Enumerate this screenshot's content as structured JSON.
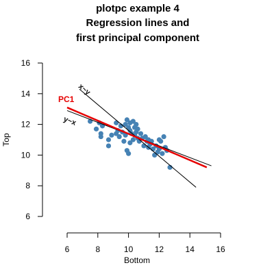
{
  "chart_data": {
    "type": "scatter",
    "title_lines": [
      "plotpc example 4",
      "Regression lines and",
      "first principal component"
    ],
    "xlabel": "Bottom",
    "ylabel": "Top",
    "xlim": [
      6,
      16
    ],
    "ylim": [
      6,
      16
    ],
    "x_ticks": [
      "6",
      "8",
      "10",
      "12",
      "14",
      "16"
    ],
    "y_ticks": [
      "6",
      "8",
      "10",
      "12",
      "14",
      "16"
    ],
    "grid": false,
    "point_color": "#4682b4",
    "pc_color": "#e60000",
    "points": [
      {
        "x": 7.5,
        "y": 12.2
      },
      {
        "x": 7.9,
        "y": 11.7
      },
      {
        "x": 8.1,
        "y": 12.1
      },
      {
        "x": 8.2,
        "y": 11.4
      },
      {
        "x": 8.2,
        "y": 11.2
      },
      {
        "x": 8.3,
        "y": 11.9
      },
      {
        "x": 8.7,
        "y": 11.0
      },
      {
        "x": 8.7,
        "y": 10.6
      },
      {
        "x": 8.9,
        "y": 11.3
      },
      {
        "x": 9.2,
        "y": 12.1
      },
      {
        "x": 9.2,
        "y": 11.4
      },
      {
        "x": 9.3,
        "y": 11.6
      },
      {
        "x": 9.4,
        "y": 11.2
      },
      {
        "x": 9.5,
        "y": 11.9
      },
      {
        "x": 9.6,
        "y": 11.5
      },
      {
        "x": 9.7,
        "y": 10.9
      },
      {
        "x": 9.8,
        "y": 12.0
      },
      {
        "x": 9.8,
        "y": 11.3
      },
      {
        "x": 9.9,
        "y": 12.3
      },
      {
        "x": 9.9,
        "y": 10.3
      },
      {
        "x": 10.0,
        "y": 10.1
      },
      {
        "x": 10.0,
        "y": 11.8
      },
      {
        "x": 10.1,
        "y": 12.1
      },
      {
        "x": 10.1,
        "y": 11.6
      },
      {
        "x": 10.1,
        "y": 10.8
      },
      {
        "x": 10.2,
        "y": 11.4
      },
      {
        "x": 10.3,
        "y": 12.2
      },
      {
        "x": 10.3,
        "y": 11.0
      },
      {
        "x": 10.4,
        "y": 11.8
      },
      {
        "x": 10.4,
        "y": 11.3
      },
      {
        "x": 10.5,
        "y": 12.0
      },
      {
        "x": 10.5,
        "y": 11.5
      },
      {
        "x": 10.6,
        "y": 11.1
      },
      {
        "x": 10.6,
        "y": 11.7
      },
      {
        "x": 10.7,
        "y": 10.9
      },
      {
        "x": 10.8,
        "y": 11.4
      },
      {
        "x": 10.9,
        "y": 11.1
      },
      {
        "x": 11.0,
        "y": 10.6
      },
      {
        "x": 11.1,
        "y": 11.2
      },
      {
        "x": 11.2,
        "y": 10.9
      },
      {
        "x": 11.3,
        "y": 10.5
      },
      {
        "x": 11.3,
        "y": 11.0
      },
      {
        "x": 11.4,
        "y": 10.7
      },
      {
        "x": 11.5,
        "y": 10.9
      },
      {
        "x": 11.6,
        "y": 10.4
      },
      {
        "x": 11.7,
        "y": 10.0
      },
      {
        "x": 11.8,
        "y": 10.6
      },
      {
        "x": 11.9,
        "y": 10.2
      },
      {
        "x": 12.0,
        "y": 10.4
      },
      {
        "x": 12.0,
        "y": 11.0
      },
      {
        "x": 12.1,
        "y": 10.9
      },
      {
        "x": 12.2,
        "y": 10.1
      },
      {
        "x": 12.3,
        "y": 11.2
      },
      {
        "x": 12.4,
        "y": 10.5
      },
      {
        "x": 12.5,
        "y": 10.3
      },
      {
        "x": 12.7,
        "y": 9.2
      }
    ],
    "lines": [
      {
        "label": "x~y",
        "color": "#000000",
        "from": {
          "x": 6.8,
          "y": 14.3
        },
        "to": {
          "x": 14.4,
          "y": 7.9
        }
      },
      {
        "label": "y~x",
        "color": "#000000",
        "from": {
          "x": 6.0,
          "y": 12.9
        },
        "to": {
          "x": 15.4,
          "y": 9.3
        }
      },
      {
        "label": "PC1",
        "color": "#e60000",
        "from": {
          "x": 6.0,
          "y": 13.1
        },
        "to": {
          "x": 15.1,
          "y": 9.2
        }
      }
    ]
  }
}
